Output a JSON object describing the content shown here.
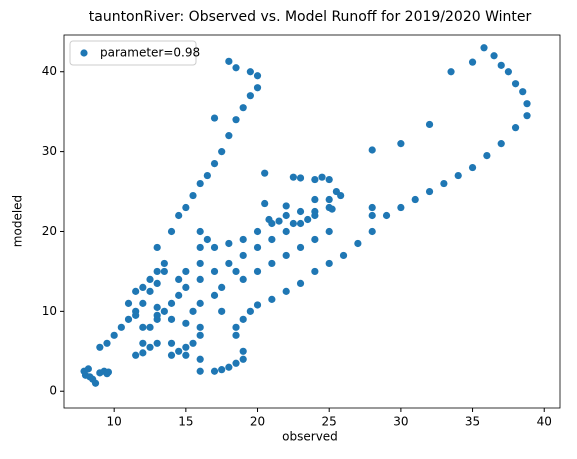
{
  "chart_data": {
    "type": "scatter",
    "title": "tauntonRiver: Observed vs. Model Runoff for 2019/2020 Winter",
    "xlabel": "observed",
    "ylabel": "modeled",
    "x": [
      8,
      8.2,
      8.5,
      8.7,
      9,
      9.3,
      9.6,
      8.3,
      7.9,
      9.5,
      9,
      9.5,
      10,
      10.5,
      11,
      11.5,
      12,
      12.5,
      13,
      13,
      13.5,
      13,
      14,
      14.5,
      15,
      15.5,
      16,
      16.5,
      17,
      17.5,
      18,
      18.5,
      19,
      19.5,
      20,
      20,
      19.5,
      18.5,
      18,
      17,
      11.5,
      12,
      12.5,
      13,
      13.5,
      14,
      14.5,
      15,
      16,
      17,
      18,
      19,
      20,
      21,
      22,
      23,
      24,
      25,
      25.5,
      25,
      24.5,
      24,
      23,
      22.5,
      20.5,
      20.5,
      20.8,
      21.5,
      22,
      22.5,
      23.5,
      24,
      25,
      25.8,
      25.2,
      14,
      14.5,
      15,
      15.5,
      16,
      16,
      15,
      14,
      13,
      12,
      11.5,
      11,
      11.5,
      12,
      12.5,
      13.5,
      14.5,
      15,
      16,
      16,
      16,
      16.5,
      17,
      18,
      19,
      20,
      21,
      22,
      23,
      24,
      17.5,
      18.5,
      19,
      20,
      21,
      22,
      23,
      24,
      25,
      28,
      28,
      17,
      16,
      17.5,
      16,
      15,
      13,
      12.5,
      12,
      14,
      13,
      15.5,
      16,
      17,
      17.5,
      18,
      18.5,
      19,
      19,
      18.5,
      18.5,
      19,
      19.5,
      20,
      21,
      22,
      23,
      24,
      25,
      26,
      27,
      28,
      29,
      30,
      31,
      32,
      33,
      34,
      35,
      36,
      37,
      38,
      38.8,
      38.8,
      38.5,
      38,
      37.5,
      37,
      36.5,
      35.8,
      35,
      33.5,
      28,
      30,
      32
    ],
    "series": [
      {
        "name": "parameter=0.98",
        "color": "#1f77b4",
        "values": [
          2,
          2.8,
          1.5,
          1,
          2.3,
          2.5,
          2.4,
          1.8,
          2.5,
          2.2,
          5.5,
          6,
          7,
          8,
          9,
          10,
          11,
          12.5,
          13.5,
          15,
          16,
          18,
          20,
          22,
          23,
          24.5,
          26,
          27,
          28.5,
          30,
          32,
          34,
          35.5,
          37,
          38,
          39.5,
          40,
          40.5,
          41.3,
          34.2,
          4.5,
          6,
          8,
          9,
          10,
          11,
          12,
          13,
          14,
          15,
          16,
          17,
          18,
          19,
          20,
          21,
          22,
          23,
          25,
          26.5,
          26.8,
          26.5,
          26.7,
          26.8,
          27.3,
          23.5,
          21.5,
          21.3,
          23.2,
          21,
          21.5,
          22.5,
          24,
          24.5,
          22.8,
          4.5,
          5,
          5.5,
          6,
          7,
          8,
          8.5,
          9,
          9.5,
          8,
          9.5,
          11,
          12.5,
          13,
          14,
          15,
          14,
          15,
          16,
          18,
          20,
          19,
          18,
          18.5,
          19,
          20,
          21,
          22,
          22.5,
          24,
          13,
          15,
          14,
          15,
          16,
          17,
          18,
          19,
          20,
          22,
          23,
          12,
          11,
          10,
          4,
          4.5,
          6,
          5.5,
          4.8,
          6,
          10.5,
          10,
          2.5,
          2.5,
          2.7,
          3,
          3.5,
          4,
          5,
          7,
          8,
          9,
          10,
          10.8,
          11.5,
          12.5,
          13.5,
          15,
          16,
          17,
          18.5,
          20,
          22,
          23,
          24,
          25,
          26,
          27,
          28,
          29.5,
          31,
          33,
          34.5,
          36,
          37.5,
          38.5,
          40,
          40.8,
          42,
          43,
          41.2,
          40,
          30.2,
          31,
          33.4
        ]
      }
    ],
    "xlim": [
      6.5,
      41.1
    ],
    "ylim": [
      -2.1,
      44.6
    ],
    "xticks": [
      10,
      15,
      20,
      25,
      30,
      35,
      40
    ],
    "yticks": [
      0,
      10,
      20,
      30,
      40
    ],
    "legend": "upper left"
  }
}
